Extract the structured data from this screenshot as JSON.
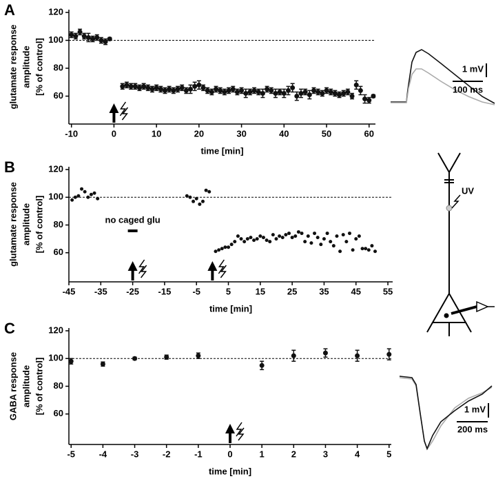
{
  "chart_data": [
    {
      "type": "scatter",
      "panel_label": "A",
      "ylabel": [
        "glutamate response",
        "amplitude",
        "[% of control]"
      ],
      "xlabel": "time [min]",
      "x": [
        -10,
        -9,
        -8,
        -7,
        -6,
        -5,
        -4,
        -3,
        -2,
        -1,
        2,
        3,
        4,
        5,
        6,
        7,
        8,
        9,
        10,
        11,
        12,
        13,
        14,
        15,
        16,
        17,
        18,
        19,
        20,
        21,
        22,
        23,
        24,
        25,
        26,
        27,
        28,
        29,
        30,
        31,
        32,
        33,
        34,
        35,
        36,
        37,
        38,
        39,
        40,
        41,
        42,
        43,
        44,
        45,
        46,
        47,
        48,
        49,
        50,
        51,
        52,
        53,
        54,
        55,
        56,
        57,
        58,
        59,
        60,
        61
      ],
      "values": [
        104,
        103,
        106,
        103,
        102,
        101,
        102,
        100,
        99,
        101,
        67,
        68,
        67,
        67,
        66,
        67,
        66,
        65,
        66,
        65,
        64,
        65,
        64,
        65,
        66,
        64,
        65,
        67,
        68,
        66,
        64,
        63,
        65,
        64,
        63,
        64,
        65,
        63,
        64,
        62,
        63,
        64,
        63,
        62,
        65,
        64,
        62,
        63,
        62,
        64,
        66,
        60,
        62,
        63,
        61,
        64,
        63,
        62,
        64,
        63,
        62,
        61,
        62,
        63,
        60,
        68,
        64,
        58,
        57,
        60
      ],
      "errors": [
        2,
        2,
        2,
        2,
        3,
        2,
        2,
        2,
        2,
        1,
        2,
        2,
        2,
        2,
        2,
        2,
        2,
        2,
        2,
        2,
        2,
        2,
        2,
        2,
        2,
        2,
        3,
        3,
        3,
        2,
        2,
        2,
        2,
        2,
        2,
        2,
        2,
        2,
        2,
        3,
        2,
        2,
        2,
        3,
        2,
        2,
        3,
        2,
        3,
        3,
        3,
        3,
        3,
        2,
        3,
        2,
        2,
        2,
        2,
        2,
        2,
        2,
        2,
        2,
        2,
        3,
        3,
        3,
        2,
        1
      ],
      "xlim": [
        -10.6,
        61.5
      ],
      "ylim": [
        40,
        122
      ],
      "xticks": [
        -10,
        0,
        10,
        20,
        30,
        40,
        50,
        60
      ],
      "yticks": [
        60,
        80,
        100,
        120
      ],
      "refline": 100,
      "arrows": [
        0
      ],
      "color": "#111111"
    },
    {
      "type": "scatter",
      "panel_label": "B",
      "ylabel": [
        "glutamate response",
        "amplitude",
        "[% of control]"
      ],
      "xlabel": "time [min]",
      "x": [
        -44,
        -43,
        -42,
        -41,
        -40,
        -39,
        -38,
        -37,
        -36,
        -8,
        -7,
        -6,
        -5,
        -4,
        -3,
        -2,
        -1,
        1,
        2,
        3,
        4,
        5,
        6,
        7,
        8,
        9,
        10,
        11,
        12,
        13,
        14,
        15,
        16,
        17,
        18,
        19,
        20,
        21,
        22,
        23,
        24,
        25,
        26,
        27,
        28,
        29,
        30,
        31,
        32,
        33,
        34,
        35,
        36,
        37,
        38,
        39,
        40,
        41,
        42,
        43,
        44,
        45,
        46,
        47,
        48,
        49,
        50,
        51
      ],
      "values": [
        98,
        100,
        101,
        106,
        104,
        100,
        102,
        103,
        99,
        101,
        100,
        97,
        99,
        95,
        97,
        105,
        104,
        61,
        62,
        63,
        64,
        64,
        66,
        68,
        72,
        70,
        68,
        70,
        71,
        69,
        70,
        72,
        71,
        69,
        68,
        73,
        70,
        72,
        71,
        73,
        74,
        71,
        72,
        75,
        74,
        68,
        72,
        67,
        74,
        71,
        66,
        70,
        74,
        68,
        65,
        72,
        61,
        73,
        68,
        74,
        62,
        70,
        72,
        63,
        63,
        62,
        65,
        61
      ],
      "xlim": [
        -45,
        56.5
      ],
      "ylim": [
        39,
        122
      ],
      "xticks": [
        -45,
        -35,
        -25,
        -15,
        -5,
        5,
        15,
        25,
        35,
        45,
        55
      ],
      "yticks": [
        60,
        80,
        100,
        120
      ],
      "refline": 100,
      "arrows": [
        -25,
        0
      ],
      "annotation": {
        "text": "no caged glu",
        "x": -25
      },
      "color": "#111111"
    },
    {
      "type": "scatter",
      "panel_label": "C",
      "ylabel": [
        "GABA response",
        "amplitude",
        "[% of control]"
      ],
      "xlabel": "time [min]",
      "x": [
        -5,
        -4,
        -3,
        -2,
        -1,
        1,
        2,
        3,
        4,
        5
      ],
      "values": [
        98,
        96,
        100,
        101,
        102,
        95,
        102,
        104,
        102,
        103
      ],
      "errors": [
        2,
        1.5,
        1,
        1.5,
        2,
        3,
        4,
        3,
        4,
        4
      ],
      "xlim": [
        -5.07,
        5.07
      ],
      "ylim": [
        38,
        122
      ],
      "xticks": [
        -5,
        -4,
        -3,
        -2,
        -1,
        0,
        1,
        2,
        3,
        4,
        5
      ],
      "yticks": [
        60,
        80,
        100,
        120
      ],
      "refline": 100,
      "arrows": [
        0
      ],
      "color": "#111111"
    }
  ],
  "scale_bars": {
    "a_voltage": "1 mV",
    "a_time": "100 ms",
    "c_voltage": "1 mV",
    "c_time": "200 ms"
  },
  "diagram": {
    "label": "UV"
  }
}
